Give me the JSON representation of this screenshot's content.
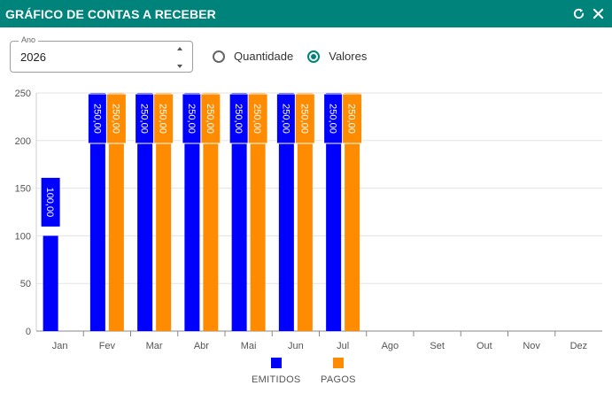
{
  "window": {
    "title": "GRÁFICO DE CONTAS A RECEBER",
    "reload_icon": "reload-icon",
    "close_icon": "close-icon"
  },
  "year_field": {
    "label": "Ano",
    "value": "2026"
  },
  "mode": {
    "options": [
      {
        "label": "Quantidade",
        "checked": false
      },
      {
        "label": "Valores",
        "checked": true
      }
    ]
  },
  "colors": {
    "header": "#00837b",
    "emitidos": "#0000ff",
    "pagos": "#ff8c00"
  },
  "chart_data": {
    "type": "bar",
    "categories": [
      "Jan",
      "Fev",
      "Mar",
      "Abr",
      "Mai",
      "Jun",
      "Jul",
      "Ago",
      "Set",
      "Out",
      "Nov",
      "Dez"
    ],
    "series": [
      {
        "name": "EMITIDOS",
        "values": [
          100,
          250,
          250,
          250,
          250,
          250,
          250,
          null,
          null,
          null,
          null,
          null
        ],
        "labels": [
          "100,00",
          "250,00",
          "250,00",
          "250,00",
          "250,00",
          "250,00",
          "250,00",
          null,
          null,
          null,
          null,
          null
        ]
      },
      {
        "name": "PAGOS",
        "values": [
          null,
          250,
          250,
          250,
          250,
          250,
          250,
          null,
          null,
          null,
          null,
          null
        ],
        "labels": [
          null,
          "250,00",
          "250,00",
          "250,00",
          "250,00",
          "250,00",
          "250,00",
          null,
          null,
          null,
          null,
          null
        ]
      }
    ],
    "yticks": [
      "0",
      "50",
      "100",
      "150",
      "200",
      "250"
    ],
    "ylim": [
      0,
      250
    ],
    "grid": true,
    "legend_position": "bottom"
  }
}
